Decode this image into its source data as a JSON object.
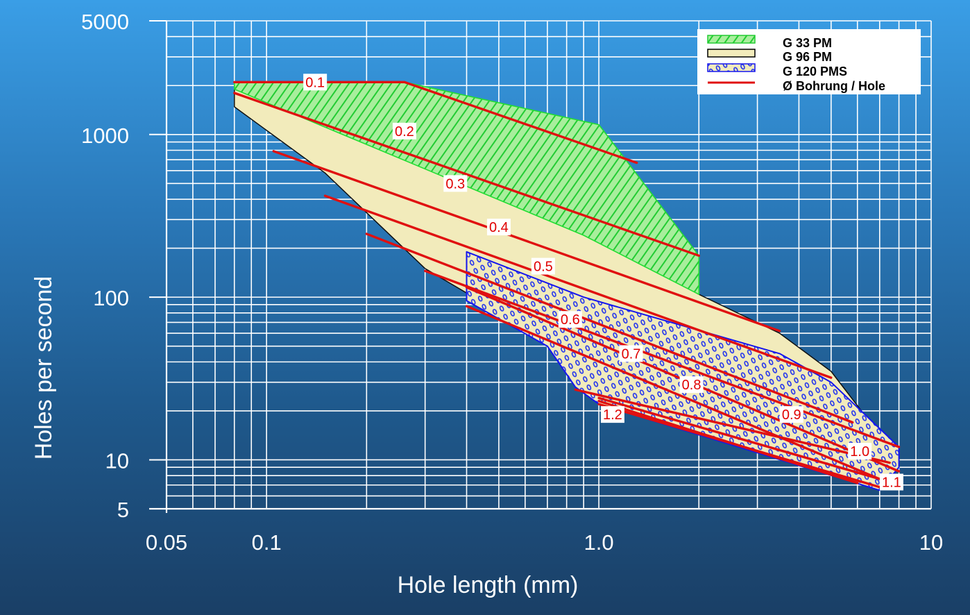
{
  "chart_data": {
    "type": "area",
    "x_scale": "log",
    "y_scale": "log",
    "xlim": [
      0.05,
      10
    ],
    "ylim": [
      5,
      5000
    ],
    "xlabel": "Hole length (mm)",
    "ylabel": "Holes per second",
    "x_ticks": [
      {
        "value": 0.05,
        "label": "0.05"
      },
      {
        "value": 0.1,
        "label": "0.1"
      },
      {
        "value": 1.0,
        "label": "1.0"
      },
      {
        "value": 10,
        "label": "10"
      }
    ],
    "y_ticks": [
      {
        "value": 5,
        "label": "5"
      },
      {
        "value": 10,
        "label": "10"
      },
      {
        "value": 100,
        "label": "100"
      },
      {
        "value": 1000,
        "label": "1000"
      },
      {
        "value": 5000,
        "label": "5000"
      }
    ],
    "grid": true,
    "legend_position": "top-right",
    "legend": [
      {
        "label": "G 33 PM",
        "style": "green-hatch"
      },
      {
        "label": "G 96 PM",
        "style": "beige-fill"
      },
      {
        "label": "G 120 PMS",
        "style": "blue-dots"
      },
      {
        "label": "Ø Bohrung / Hole",
        "style": "red-line"
      }
    ],
    "regions": [
      {
        "name": "G 96 PM",
        "color": "#f2ebbb",
        "points": [
          [
            0.08,
            2050
          ],
          [
            0.08,
            1480
          ],
          [
            0.15,
            580
          ],
          [
            0.3,
            150
          ],
          [
            0.9,
            40
          ],
          [
            1.0,
            27
          ],
          [
            7,
            6.5
          ],
          [
            8,
            10
          ],
          [
            5,
            35
          ],
          [
            3.5,
            60
          ],
          [
            2,
            104
          ],
          [
            0.9,
            260
          ],
          [
            0.08,
            2050
          ]
        ]
      },
      {
        "name": "G 33 PM",
        "color": "#33dd44",
        "points": [
          [
            0.08,
            2100
          ],
          [
            0.26,
            2100
          ],
          [
            1.0,
            1150
          ],
          [
            2.0,
            180
          ],
          [
            2.0,
            104
          ],
          [
            0.9,
            240
          ],
          [
            0.08,
            1900
          ]
        ]
      },
      {
        "name": "G 120 PMS",
        "color": "#1a1aee",
        "points": [
          [
            0.4,
            190
          ],
          [
            0.9,
            100
          ],
          [
            3.5,
            45
          ],
          [
            5,
            30
          ],
          [
            8,
            12
          ],
          [
            8,
            9
          ],
          [
            7,
            6.5
          ],
          [
            1.0,
            22
          ],
          [
            0.85,
            28
          ],
          [
            0.7,
            50
          ],
          [
            0.4,
            95
          ]
        ]
      }
    ],
    "series": [
      {
        "name": "0.1",
        "x": [
          0.08,
          0.26,
          1.3
        ],
        "y": [
          2100,
          2100,
          670
        ]
      },
      {
        "name": "0.2",
        "x": [
          0.08,
          2.0
        ],
        "y": [
          1800,
          180
        ]
      },
      {
        "name": "0.3",
        "x": [
          0.105,
          3.5
        ],
        "y": [
          790,
          62
        ]
      },
      {
        "name": "0.4",
        "x": [
          0.15,
          5.0
        ],
        "y": [
          420,
          32
        ]
      },
      {
        "name": "0.5",
        "x": [
          0.2,
          5.8
        ],
        "y": [
          245,
          17
        ]
      },
      {
        "name": "0.6",
        "x": [
          0.3,
          8.0
        ],
        "y": [
          145,
          12
        ]
      },
      {
        "name": "0.7",
        "x": [
          0.4,
          8.0
        ],
        "y": [
          115,
          8.5
        ]
      },
      {
        "name": "0.8",
        "x": [
          0.4,
          8.0
        ],
        "y": [
          88,
          6.8
        ]
      },
      {
        "name": "0.9",
        "x": [
          0.85,
          7.5
        ],
        "y": [
          27,
          9.6
        ]
      },
      {
        "name": "1.0",
        "x": [
          1.0,
          7.2
        ],
        "y": [
          24,
          7.5
        ]
      },
      {
        "name": "1.1",
        "x": [
          1.0,
          7.0
        ],
        "y": [
          22,
          6.8
        ]
      },
      {
        "name": "1.2",
        "x": [
          1.0,
          6.0
        ],
        "y": [
          23,
          7.2
        ]
      }
    ],
    "line_labels": [
      {
        "text": "0.1",
        "x": 0.14,
        "y": 2100
      },
      {
        "text": "0.2",
        "x": 0.26,
        "y": 1050
      },
      {
        "text": "0.3",
        "x": 0.37,
        "y": 500
      },
      {
        "text": "0.4",
        "x": 0.5,
        "y": 270
      },
      {
        "text": "0.5",
        "x": 0.68,
        "y": 155
      },
      {
        "text": "0.6",
        "x": 0.82,
        "y": 73
      },
      {
        "text": "0.7",
        "x": 1.25,
        "y": 45
      },
      {
        "text": "0.8",
        "x": 1.9,
        "y": 29
      },
      {
        "text": "0.9",
        "x": 3.8,
        "y": 19
      },
      {
        "text": "1.0",
        "x": 6.1,
        "y": 11.3
      },
      {
        "text": "1.1",
        "x": 7.6,
        "y": 7.3
      },
      {
        "text": "1.2",
        "x": 1.1,
        "y": 19
      }
    ]
  }
}
